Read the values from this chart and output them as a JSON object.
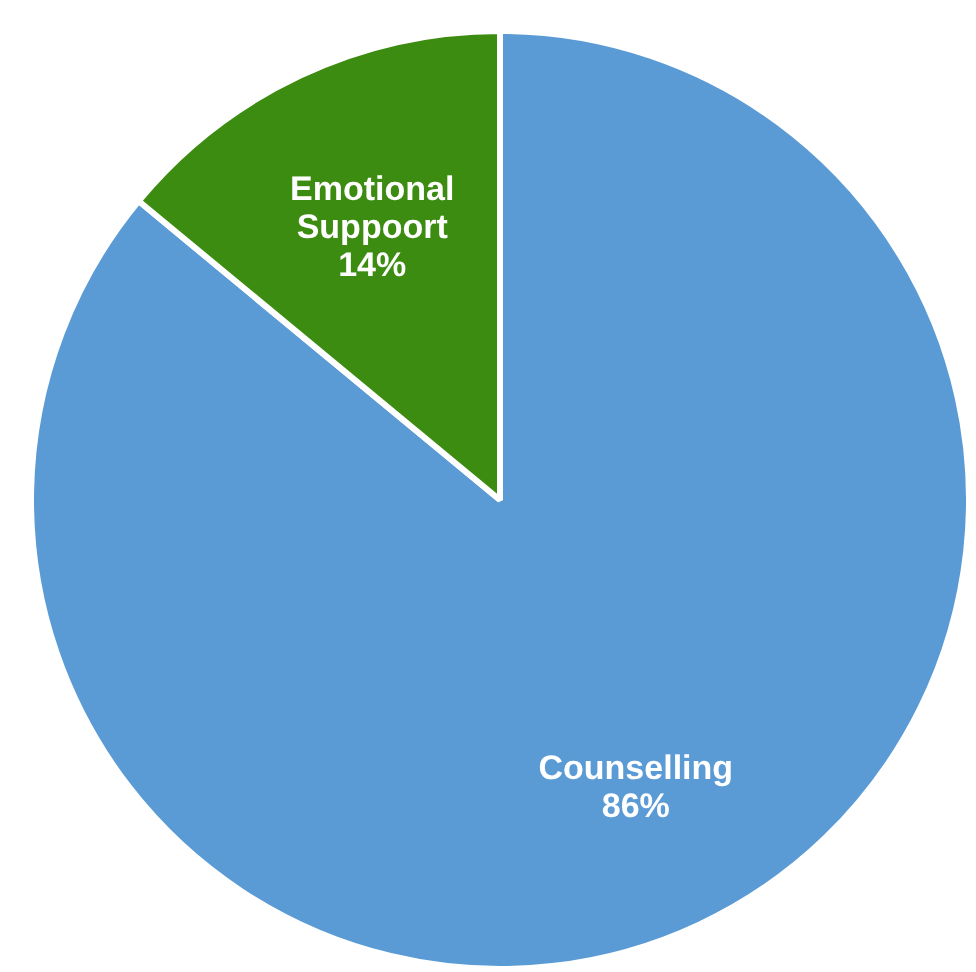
{
  "chart_data": {
    "type": "pie",
    "categories": [
      "Counselling",
      "Emotional Suppoort"
    ],
    "values": [
      86,
      14
    ],
    "colors": [
      "#5b9bd5",
      "#3d8c12"
    ],
    "value_labels": [
      "86%",
      "14%"
    ],
    "legend": false
  }
}
